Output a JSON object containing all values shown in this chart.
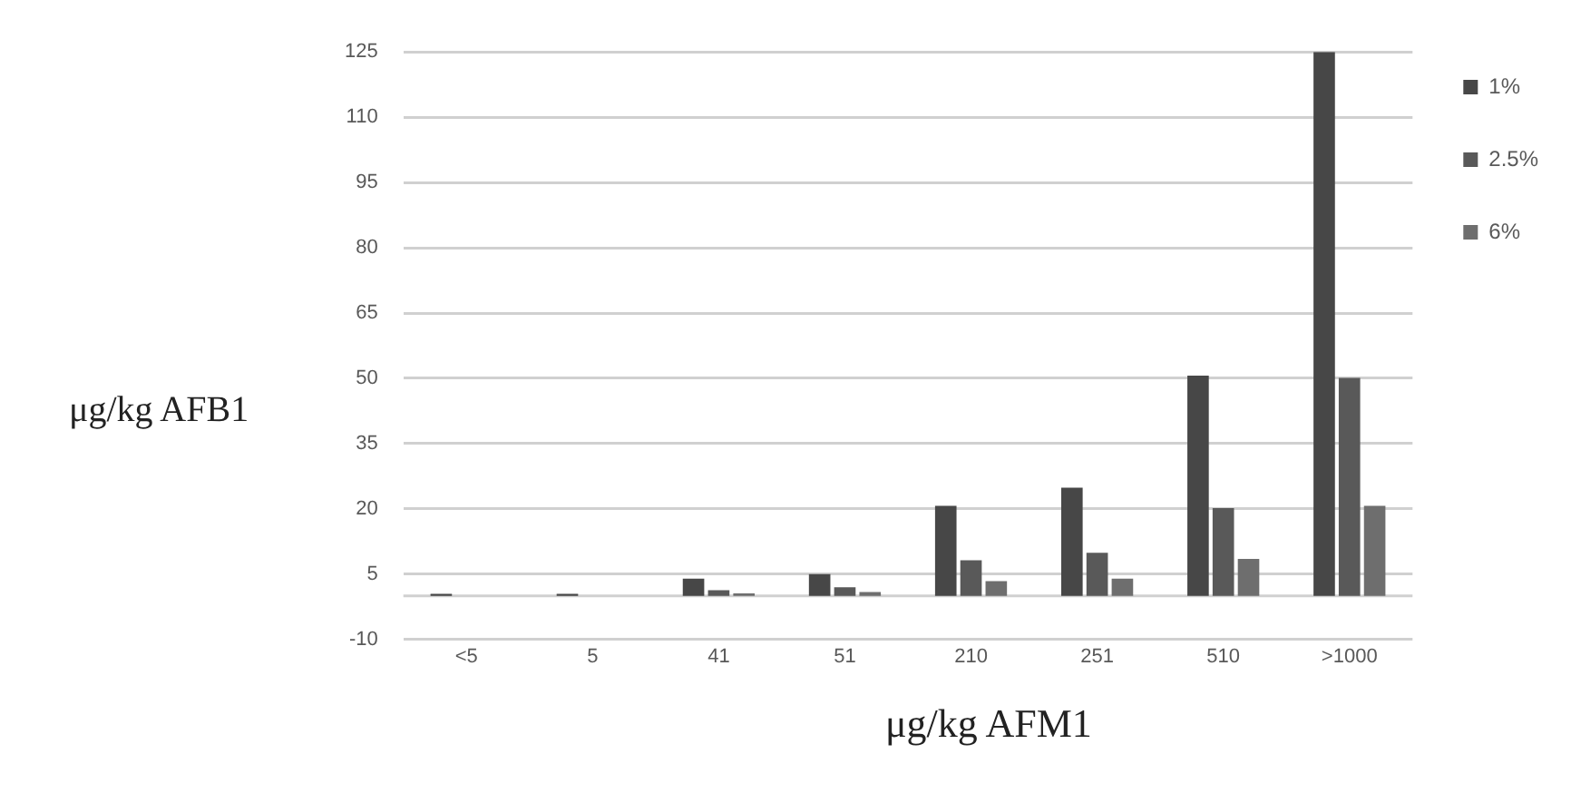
{
  "chart_data": {
    "type": "bar",
    "xlabel": "μg/kg AFM1",
    "ylabel": "μg/kg AFB1",
    "categories": [
      "<5",
      "5",
      "41",
      "51",
      "210",
      "251",
      "510",
      ">1000"
    ],
    "series": [
      {
        "name": "1%",
        "color": "#474747",
        "values": [
          0.5,
          0.5,
          4,
          5,
          20.7,
          24.9,
          50.6,
          125
        ]
      },
      {
        "name": "2.5%",
        "color": "#595959",
        "values": [
          0,
          0,
          1.3,
          2,
          8.2,
          9.9,
          20.2,
          50.1
        ]
      },
      {
        "name": "6%",
        "color": "#6e6e6e",
        "values": [
          0,
          0,
          0.6,
          0.9,
          3.4,
          4,
          8.5,
          20.7
        ]
      }
    ],
    "ylim": [
      -10,
      125
    ],
    "yticks": [
      -10,
      5,
      20,
      35,
      50,
      65,
      80,
      95,
      110,
      125
    ],
    "grid": "y",
    "legend": "top right"
  }
}
